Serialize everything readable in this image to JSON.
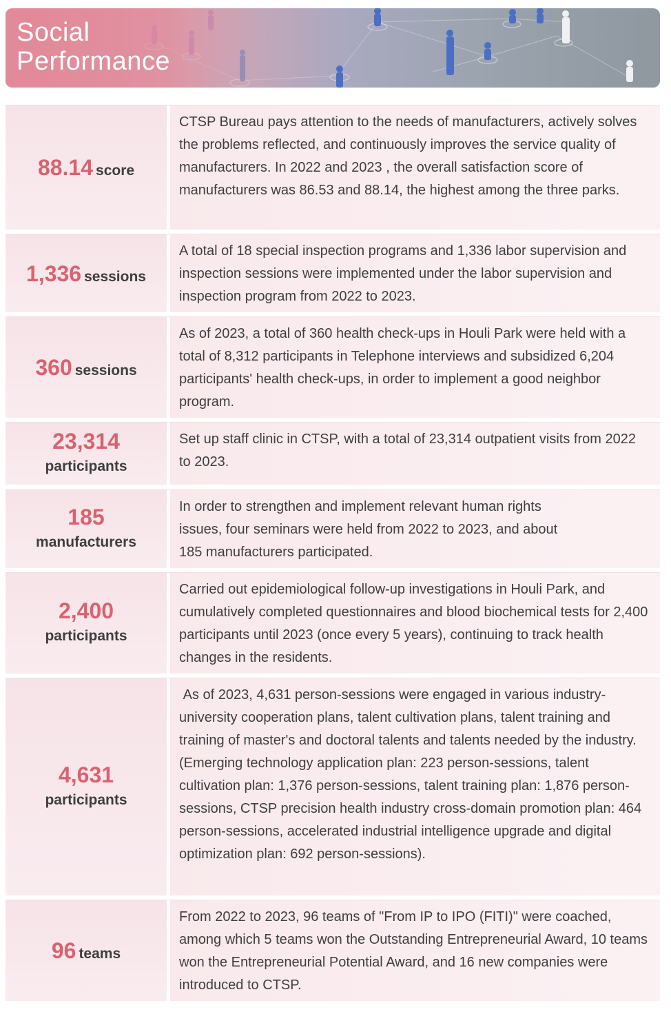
{
  "header": {
    "title_line1": "Social",
    "title_line2": "Performance",
    "image": "people-network-illustration"
  },
  "colors": {
    "accent": "#d9626f",
    "row_bg": "#f8e6ea",
    "banner_pink": "#e28a9a"
  },
  "rows": [
    {
      "value": "88.14",
      "unit": "score",
      "text": "CTSP Bureau pays attention to the needs of manufacturers, actively solves the problems reflected, and continuously improves the service quality of manufacturers. In 2022 and 2023 , the overall satisfaction score of manufacturers was 86.53 and 88.14, the highest among the three parks."
    },
    {
      "value": "1,336",
      "unit": "sessions",
      "text": "A total of 18 special inspection programs and 1,336 labor supervision and inspection sessions were implemented under the labor supervision and inspection program from 2022 to 2023."
    },
    {
      "value": "360",
      "unit": "sessions",
      "text": "As of 2023, a total of 360 health check-ups in Houli Park were held with a total of 8,312 participants in Telephone interviews and subsidized 6,204 participants' health check-ups, in order to implement a good neighbor program."
    },
    {
      "value": "23,314",
      "unit": "participants",
      "text": "Set up staff clinic in CTSP, with a total of 23,314 outpatient visits from 2022 to 2023."
    },
    {
      "value": "185",
      "unit": "manufacturers",
      "text": "In order to strengthen and implement relevant human rights issues, four seminars were held from 2022 to 2023, and about 185 manufacturers participated."
    },
    {
      "value": "2,400",
      "unit": "participants",
      "text": "Carried out epidemiological follow-up investigations in Houli Park, and cumulatively completed questionnaires and blood biochemical tests for 2,400 participants until 2023 (once every 5 years), continuing to track health changes in the residents."
    },
    {
      "value": "4,631",
      "unit": "participants",
      "text": " As of 2023, 4,631 person-sessions were engaged in various industry-university cooperation plans, talent cultivation plans, talent training and training of master's and doctoral talents and talents needed by the industry. (Emerging technology application plan: 223 person-sessions, talent cultivation plan: 1,376 person-sessions, talent training plan: 1,876 person-sessions, CTSP precision health industry cross-domain promotion plan: 464 person-sessions, accelerated industrial intelligence upgrade and digital optimization plan: 692 person-sessions)."
    },
    {
      "value": "96",
      "unit": "teams",
      "text": "From 2022 to 2023, 96 teams of \"From IP to IPO (FITI)\" were coached, among which 5 teams won the Outstanding Entrepreneurial Award, 10 teams won the Entrepreneurial Potential Award, and 16 new companies were introduced to CTSP."
    }
  ]
}
